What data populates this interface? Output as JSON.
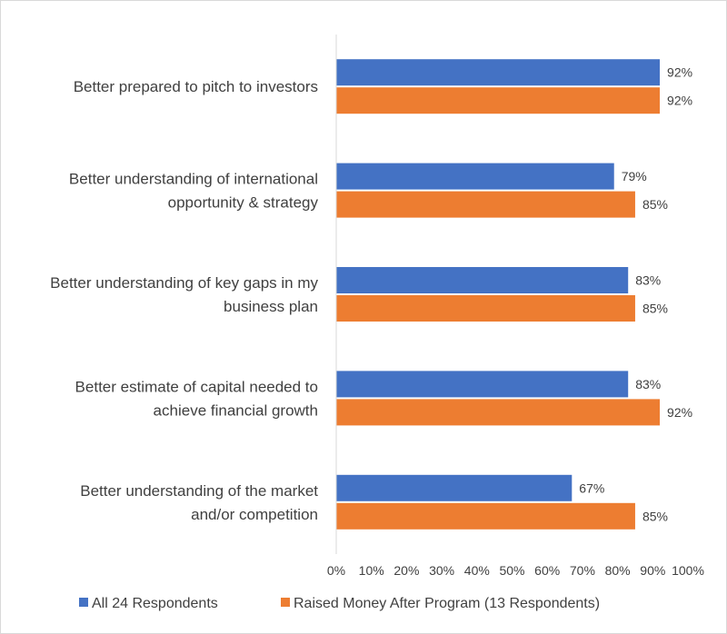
{
  "chart_data": {
    "type": "bar",
    "orientation": "horizontal",
    "categories": [
      [
        "Better prepared to pitch to investors"
      ],
      [
        "Better understanding of international",
        "opportunity & strategy"
      ],
      [
        "Better understanding of key gaps in my",
        "business plan"
      ],
      [
        "Better estimate of capital needed to",
        "achieve financial growth"
      ],
      [
        "Better understanding of the market",
        "and/or competition"
      ]
    ],
    "series": [
      {
        "name": "All 24 Respondents",
        "color": "#4472C4",
        "values": [
          92,
          79,
          83,
          83,
          67
        ],
        "labels": [
          "92%",
          "79%",
          "83%",
          "83%",
          "67%"
        ]
      },
      {
        "name": "Raised Money After Program (13 Respondents)",
        "color": "#ED7D31",
        "values": [
          92,
          85,
          85,
          92,
          85
        ],
        "labels": [
          "92%",
          "85%",
          "85%",
          "92%",
          "85%"
        ]
      }
    ],
    "xlim": [
      0,
      100
    ],
    "xticks": [
      0,
      10,
      20,
      30,
      40,
      50,
      60,
      70,
      80,
      90,
      100
    ],
    "xtick_labels": [
      "0%",
      "10%",
      "20%",
      "30%",
      "40%",
      "50%",
      "60%",
      "70%",
      "80%",
      "90%",
      "100%"
    ],
    "grid": false,
    "legend_position": "bottom",
    "title": "",
    "xlabel": "",
    "ylabel": ""
  }
}
